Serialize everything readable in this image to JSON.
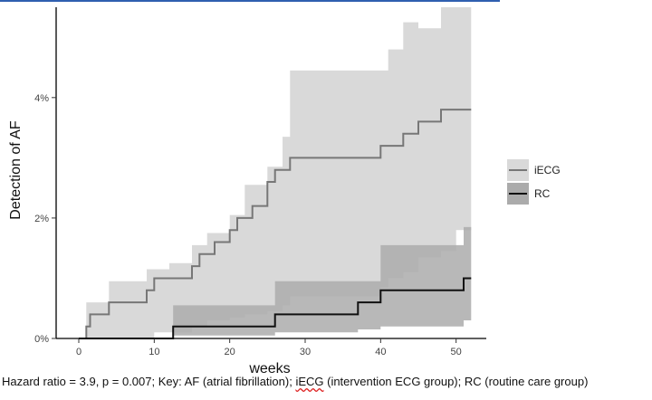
{
  "chart_data": {
    "type": "line",
    "subtype": "step",
    "title": "",
    "xlabel": "weeks",
    "ylabel": "Detection of AF",
    "xlim": [
      -3,
      54
    ],
    "ylim": [
      0,
      0.055
    ],
    "x_ticks": [
      0,
      10,
      20,
      30,
      40,
      50
    ],
    "y_ticks": [
      {
        "value": 0,
        "label": "0%"
      },
      {
        "value": 0.02,
        "label": "2%"
      },
      {
        "value": 0.04,
        "label": "4%"
      }
    ],
    "grid": false,
    "legend_position": "right",
    "series": [
      {
        "name": "iECG",
        "color": "#777777",
        "band_color": "#d9d9d9",
        "steps": [
          [
            0,
            0
          ],
          [
            1,
            0.002
          ],
          [
            1.5,
            0.004
          ],
          [
            4,
            0.006
          ],
          [
            9,
            0.008
          ],
          [
            10,
            0.01
          ],
          [
            15,
            0.012
          ],
          [
            16,
            0.014
          ],
          [
            18,
            0.016
          ],
          [
            20,
            0.018
          ],
          [
            21,
            0.02
          ],
          [
            23,
            0.022
          ],
          [
            25,
            0.026
          ],
          [
            26,
            0.028
          ],
          [
            28,
            0.03
          ],
          [
            40,
            0.032
          ],
          [
            43,
            0.034
          ],
          [
            45,
            0.036
          ],
          [
            48,
            0.038
          ],
          [
            52,
            0.038
          ]
        ],
        "band_steps": [
          [
            1,
            0,
            0.006
          ],
          [
            4,
            0,
            0.0095
          ],
          [
            9,
            0,
            0.0115
          ],
          [
            10,
            0.001,
            0.0115
          ],
          [
            12,
            0.001,
            0.0125
          ],
          [
            15,
            0.002,
            0.0155
          ],
          [
            17,
            0.003,
            0.0175
          ],
          [
            20,
            0.0035,
            0.0205
          ],
          [
            22,
            0.004,
            0.0255
          ],
          [
            25,
            0.0045,
            0.0285
          ],
          [
            27,
            0.0055,
            0.0335
          ],
          [
            28,
            0.007,
            0.0445
          ],
          [
            40,
            0.0085,
            0.0445
          ],
          [
            41,
            0.01,
            0.048
          ],
          [
            43,
            0.011,
            0.0525
          ],
          [
            45,
            0.0135,
            0.0515
          ],
          [
            48,
            0.0145,
            0.055
          ],
          [
            50,
            0.018,
            0.055
          ],
          [
            52,
            0.0215,
            0.055
          ]
        ]
      },
      {
        "name": "RC",
        "color": "#111111",
        "band_color": "#ababab",
        "steps": [
          [
            0,
            0
          ],
          [
            12.5,
            0
          ],
          [
            12.5,
            0.002
          ],
          [
            26,
            0.002
          ],
          [
            26,
            0.004
          ],
          [
            37,
            0.004
          ],
          [
            37,
            0.006
          ],
          [
            40,
            0.006
          ],
          [
            40,
            0.008
          ],
          [
            50,
            0.008
          ],
          [
            51,
            0.01
          ],
          [
            52,
            0.01
          ]
        ],
        "band_steps": [
          [
            12.5,
            0.0005,
            0.0055
          ],
          [
            15,
            0.0005,
            0.0055
          ],
          [
            17,
            0.0005,
            0.0055
          ],
          [
            26,
            0.001,
            0.0095
          ],
          [
            37,
            0.0015,
            0.0095
          ],
          [
            40,
            0.002,
            0.0155
          ],
          [
            50,
            0.002,
            0.0155
          ],
          [
            51,
            0.003,
            0.0185
          ],
          [
            52,
            0.003,
            0.0185
          ]
        ]
      }
    ],
    "annotation": "Hazard ratio = 3.9, p = 0.007; Key: AF (atrial fibrillation); iECG (intervention ECG group); RC (routine care group)"
  },
  "caption": {
    "part1": "Hazard ratio = 3.9, p = 0.007; Key: AF (atrial fibrillation); ",
    "part2": "iECG",
    "part3": " (intervention ECG group); RC (routine care group)"
  }
}
